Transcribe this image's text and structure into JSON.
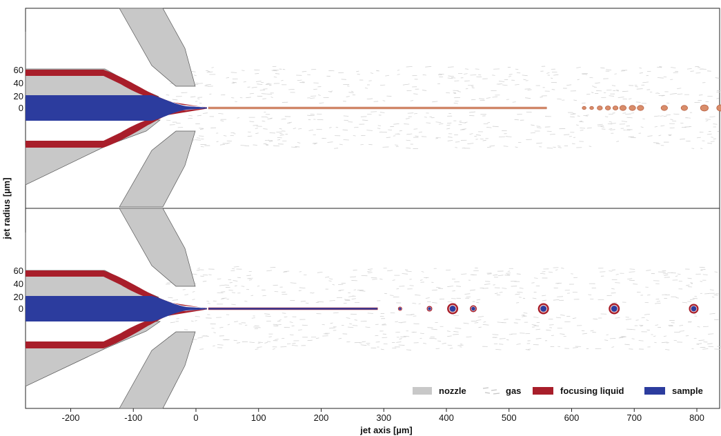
{
  "chart_data": {
    "type": "diagram",
    "xlabel": "jet axis [µm]",
    "ylabel": "jet radius [µm]",
    "xlim": [
      -270,
      840
    ],
    "x_ticks": [
      -200,
      -100,
      0,
      100,
      200,
      300,
      400,
      500,
      600,
      700,
      800
    ],
    "y_ticks": [
      0,
      20,
      40,
      60
    ],
    "panels": [
      {
        "name": "top",
        "breakup_start_x": 560,
        "droplets": [
          {
            "x": 620,
            "r": 3
          },
          {
            "x": 632,
            "r": 3
          },
          {
            "x": 645,
            "r": 4
          },
          {
            "x": 658,
            "r": 4
          },
          {
            "x": 670,
            "r": 4
          },
          {
            "x": 682,
            "r": 5
          },
          {
            "x": 697,
            "r": 5
          },
          {
            "x": 710,
            "r": 5
          },
          {
            "x": 748,
            "r": 5
          },
          {
            "x": 780,
            "r": 5
          },
          {
            "x": 812,
            "r": 6
          },
          {
            "x": 838,
            "r": 6
          }
        ]
      },
      {
        "name": "bottom",
        "breakup_start_x": 290,
        "droplets": [
          {
            "x": 326,
            "r": 3
          },
          {
            "x": 373,
            "r": 4
          },
          {
            "x": 410,
            "r": 8
          },
          {
            "x": 443,
            "r": 5
          },
          {
            "x": 555,
            "r": 8
          },
          {
            "x": 668,
            "r": 8
          },
          {
            "x": 795,
            "r": 7
          }
        ]
      }
    ],
    "legend": {
      "position": "bottom-right",
      "items": [
        {
          "label": "nozzle",
          "color": "#c8c8c8"
        },
        {
          "label": "gas",
          "color": "#d5d5d5"
        },
        {
          "label": "focusing liquid",
          "color": "#a81e2a"
        },
        {
          "label": "sample",
          "color": "#2c3c9e"
        }
      ]
    }
  }
}
